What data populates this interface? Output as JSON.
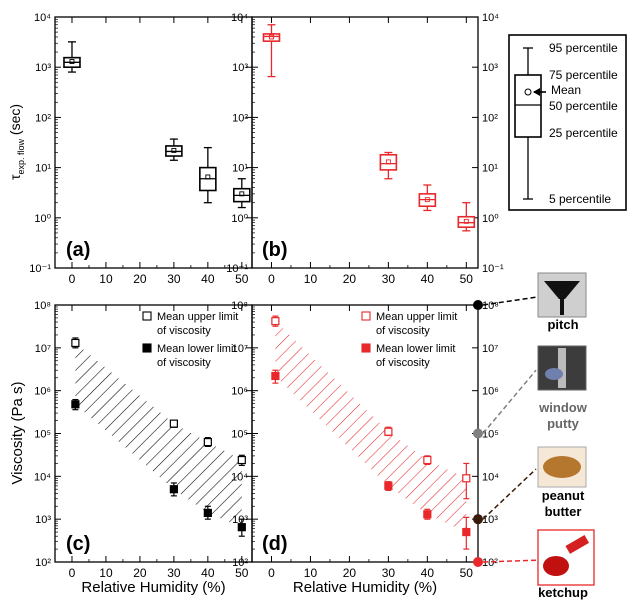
{
  "chart_data": [
    {
      "panel": "(a)",
      "type": "box",
      "color": "#000000",
      "ylabel_main": "τ",
      "ylabel_sub": "exp. flow",
      "ylabel_unit": " (sec)",
      "yscale": "log",
      "ylim": [
        0.1,
        10000
      ],
      "y_ticks": [
        0.1,
        1,
        10,
        100,
        1000,
        10000
      ],
      "x_ticks": [
        0,
        10,
        20,
        30,
        40,
        50
      ],
      "xlim": [
        -5,
        53
      ],
      "boxes": [
        {
          "x": 0,
          "p5": 800,
          "p25": 1000,
          "p50": 1250,
          "p75": 1550,
          "p95": 3200,
          "mean": 1300
        },
        {
          "x": 30,
          "p5": 14,
          "p25": 17,
          "p50": 21,
          "p75": 27,
          "p95": 37,
          "mean": 22
        },
        {
          "x": 40,
          "p5": 2,
          "p25": 3.5,
          "p50": 6,
          "p75": 10,
          "p95": 25,
          "mean": 6.5
        },
        {
          "x": 50,
          "p5": 1.6,
          "p25": 2.1,
          "p50": 2.8,
          "p75": 3.8,
          "p95": 6,
          "mean": 3
        }
      ]
    },
    {
      "panel": "(b)",
      "type": "box",
      "color": "#e8282a",
      "yscale": "log",
      "ylim": [
        0.1,
        10000
      ],
      "y_ticks": [
        0.1,
        1,
        10,
        100,
        1000,
        10000
      ],
      "x_ticks": [
        0,
        10,
        20,
        30,
        40,
        50
      ],
      "xlim": [
        -5,
        53
      ],
      "boxes": [
        {
          "x": 0,
          "p5": 650,
          "p25": 3300,
          "p50": 4100,
          "p75": 4600,
          "p95": 7000,
          "mean": 4000
        },
        {
          "x": 30,
          "p5": 6,
          "p25": 9,
          "p50": 12,
          "p75": 18,
          "p95": 20,
          "mean": 13
        },
        {
          "x": 40,
          "p5": 1.4,
          "p25": 1.7,
          "p50": 2.3,
          "p75": 3,
          "p95": 4.5,
          "mean": 2.3
        },
        {
          "x": 50,
          "p5": 0.55,
          "p25": 0.65,
          "p50": 0.8,
          "p75": 1.05,
          "p95": 2,
          "mean": 0.85
        }
      ]
    },
    {
      "panel": "(c)",
      "type": "scatter-band",
      "color": "#000000",
      "ylabel": "Viscosity (Pa s)",
      "xlabel": "Relative Humidity (%)",
      "yscale": "log",
      "ylim": [
        100,
        100000000
      ],
      "y_ticks": [
        100,
        1000,
        10000,
        100000,
        1000000,
        10000000,
        100000000
      ],
      "x_ticks": [
        0,
        10,
        20,
        30,
        40,
        50
      ],
      "xlim": [
        -5,
        53
      ],
      "legend": [
        "Mean upper limit",
        "of viscosity",
        "Mean lower limit",
        "of viscosity"
      ],
      "legend_position": "top-right",
      "upper": [
        {
          "x": 1,
          "y": 13000000,
          "lo": 10000000,
          "hi": 17000000
        },
        {
          "x": 30,
          "y": 170000,
          "lo": 140000,
          "hi": 200000
        },
        {
          "x": 40,
          "y": 63000,
          "lo": 50000,
          "hi": 80000
        },
        {
          "x": 50,
          "y": 24000,
          "lo": 18000,
          "hi": 31000
        }
      ],
      "lower": [
        {
          "x": 1,
          "y": 480000,
          "lo": 360000,
          "hi": 620000
        },
        {
          "x": 30,
          "y": 5000,
          "lo": 3500,
          "hi": 7000
        },
        {
          "x": 40,
          "y": 1400,
          "lo": 1000,
          "hi": 2000
        },
        {
          "x": 50,
          "y": 650,
          "lo": 400,
          "hi": 1000
        }
      ]
    },
    {
      "panel": "(d)",
      "type": "scatter-band",
      "color": "#e8282a",
      "xlabel": "Relative Humidity (%)",
      "yscale": "log",
      "ylim": [
        100,
        100000000
      ],
      "y_ticks": [
        100,
        1000,
        10000,
        100000,
        1000000,
        10000000,
        100000000
      ],
      "x_ticks": [
        0,
        10,
        20,
        30,
        40,
        50
      ],
      "xlim": [
        -5,
        53
      ],
      "legend": [
        "Mean upper limit",
        "of viscosity",
        "Mean lower limit",
        "of viscosity"
      ],
      "legend_position": "top-right",
      "upper": [
        {
          "x": 1,
          "y": 42000000,
          "lo": 32000000,
          "hi": 55000000
        },
        {
          "x": 30,
          "y": 110000,
          "lo": 90000,
          "hi": 140000
        },
        {
          "x": 40,
          "y": 24000,
          "lo": 19000,
          "hi": 30000
        },
        {
          "x": 50,
          "y": 9000,
          "lo": 3000,
          "hi": 20000
        }
      ],
      "lower": [
        {
          "x": 1,
          "y": 2200000,
          "lo": 1500000,
          "hi": 3000000
        },
        {
          "x": 30,
          "y": 6000,
          "lo": 4700,
          "hi": 7500
        },
        {
          "x": 40,
          "y": 1300,
          "lo": 1000,
          "hi": 1700
        },
        {
          "x": 50,
          "y": 500,
          "lo": 200,
          "hi": 1100
        }
      ]
    }
  ],
  "box_legend": {
    "labels": [
      "95 percentile",
      "75 percentile",
      "Mean",
      "50 percentile",
      "25 percentile",
      "5 percentile"
    ],
    "y_ticks": [
      0.1,
      1,
      10,
      100,
      1000,
      10000
    ]
  },
  "reference_scale": {
    "y_ticks": [
      100,
      1000,
      10000,
      100000,
      1000000,
      10000000,
      100000000
    ],
    "materials": [
      {
        "label": "pitch",
        "viscosity": 100000000,
        "color": "#000000",
        "lines": [
          "pitch"
        ]
      },
      {
        "label": "window putty",
        "viscosity": 100000,
        "color": "#808080",
        "lines": [
          "window",
          "putty"
        ]
      },
      {
        "label": "peanut butter",
        "viscosity": 1000,
        "color": "#3a1a0a",
        "lines": [
          "peanut",
          "butter"
        ]
      },
      {
        "label": "ketchup",
        "viscosity": 100,
        "color": "#e8282a",
        "lines": [
          "ketchup"
        ]
      }
    ]
  },
  "colors": {
    "black_series": "#000000",
    "red_series": "#e8282a",
    "axis": "#000000"
  }
}
